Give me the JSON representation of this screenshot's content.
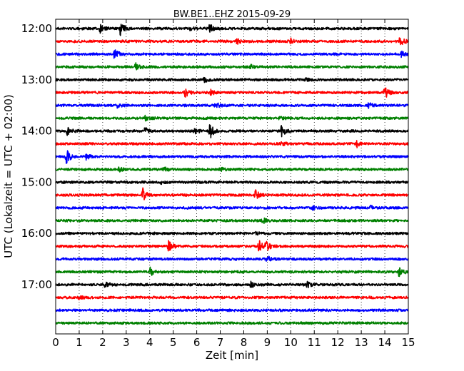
{
  "chart_data": {
    "type": "line",
    "title": "BW.BE1..EHZ 2015-09-29",
    "xlabel": "Zeit  [min]",
    "ylabel": "UTC (Lokalzeit = UTC + 02:00)",
    "xlim": [
      0,
      15
    ],
    "x_ticks": [
      0,
      1,
      2,
      3,
      4,
      5,
      6,
      7,
      8,
      9,
      10,
      11,
      12,
      13,
      14,
      15
    ],
    "y_tick_labels": [
      "12:00",
      "13:00",
      "14:00",
      "15:00",
      "16:00",
      "17:00"
    ],
    "grid": "vertical-dotted",
    "traces_per_hour": 4,
    "trace_minutes": 15,
    "trace_colors": [
      "#000000",
      "#ff0000",
      "#0000ff",
      "#008000"
    ],
    "traces": [
      {
        "start": "12:00",
        "events": [
          [
            1.9,
            0.6
          ],
          [
            2.75,
            1.0
          ],
          [
            5.7,
            0.4
          ],
          [
            6.55,
            0.7
          ]
        ]
      },
      {
        "start": "12:15",
        "events": [
          [
            7.7,
            0.5
          ],
          [
            10.0,
            0.4
          ],
          [
            14.65,
            0.9
          ]
        ]
      },
      {
        "start": "12:30",
        "events": [
          [
            2.5,
            0.8
          ],
          [
            14.7,
            0.4
          ]
        ]
      },
      {
        "start": "12:45",
        "events": [
          [
            3.4,
            0.6
          ],
          [
            8.3,
            0.3
          ]
        ]
      },
      {
        "start": "13:00",
        "events": [
          [
            6.3,
            0.4
          ],
          [
            10.6,
            0.3
          ]
        ]
      },
      {
        "start": "13:15",
        "events": [
          [
            5.5,
            0.7
          ],
          [
            6.6,
            0.4
          ],
          [
            14.0,
            1.0
          ]
        ]
      },
      {
        "start": "13:30",
        "events": [
          [
            2.6,
            0.3
          ],
          [
            6.8,
            0.4
          ],
          [
            13.3,
            0.4
          ]
        ]
      },
      {
        "start": "13:45",
        "events": [
          [
            3.8,
            0.3
          ],
          [
            9.5,
            0.3
          ]
        ]
      },
      {
        "start": "14:00",
        "events": [
          [
            0.5,
            0.7
          ],
          [
            3.8,
            0.5
          ],
          [
            5.9,
            0.5
          ],
          [
            6.55,
            1.3
          ],
          [
            9.6,
            0.8
          ]
        ]
      },
      {
        "start": "14:15",
        "events": [
          [
            12.8,
            0.6
          ],
          [
            9.6,
            0.3
          ]
        ]
      },
      {
        "start": "14:30",
        "events": [
          [
            0.45,
            1.2
          ],
          [
            1.3,
            0.4
          ]
        ]
      },
      {
        "start": "14:45",
        "events": [
          [
            2.7,
            0.3
          ],
          [
            4.6,
            0.3
          ],
          [
            7.0,
            0.3
          ]
        ]
      },
      {
        "start": "15:00",
        "events": [
          [
            4.5,
            0.2
          ]
        ]
      },
      {
        "start": "15:15",
        "events": [
          [
            3.7,
            1.0
          ],
          [
            8.5,
            0.7
          ]
        ]
      },
      {
        "start": "15:30",
        "events": [
          [
            10.9,
            0.3
          ],
          [
            13.4,
            0.3
          ]
        ]
      },
      {
        "start": "15:45",
        "events": [
          [
            8.8,
            0.5
          ]
        ]
      },
      {
        "start": "16:00",
        "events": [
          [
            8.5,
            0.2
          ]
        ]
      },
      {
        "start": "16:15",
        "events": [
          [
            4.8,
            0.8
          ],
          [
            8.65,
            1.0
          ],
          [
            8.95,
            0.9
          ]
        ]
      },
      {
        "start": "16:30",
        "events": [
          [
            9.0,
            0.5
          ]
        ]
      },
      {
        "start": "16:45",
        "events": [
          [
            4.0,
            0.7
          ],
          [
            14.6,
            0.8
          ]
        ]
      },
      {
        "start": "17:00",
        "events": [
          [
            2.1,
            0.4
          ],
          [
            8.3,
            0.4
          ],
          [
            10.7,
            0.4
          ]
        ]
      },
      {
        "start": "17:15",
        "events": [
          [
            1.0,
            0.2
          ]
        ]
      },
      {
        "start": "17:30",
        "events": []
      },
      {
        "start": "17:45",
        "events": []
      }
    ]
  }
}
